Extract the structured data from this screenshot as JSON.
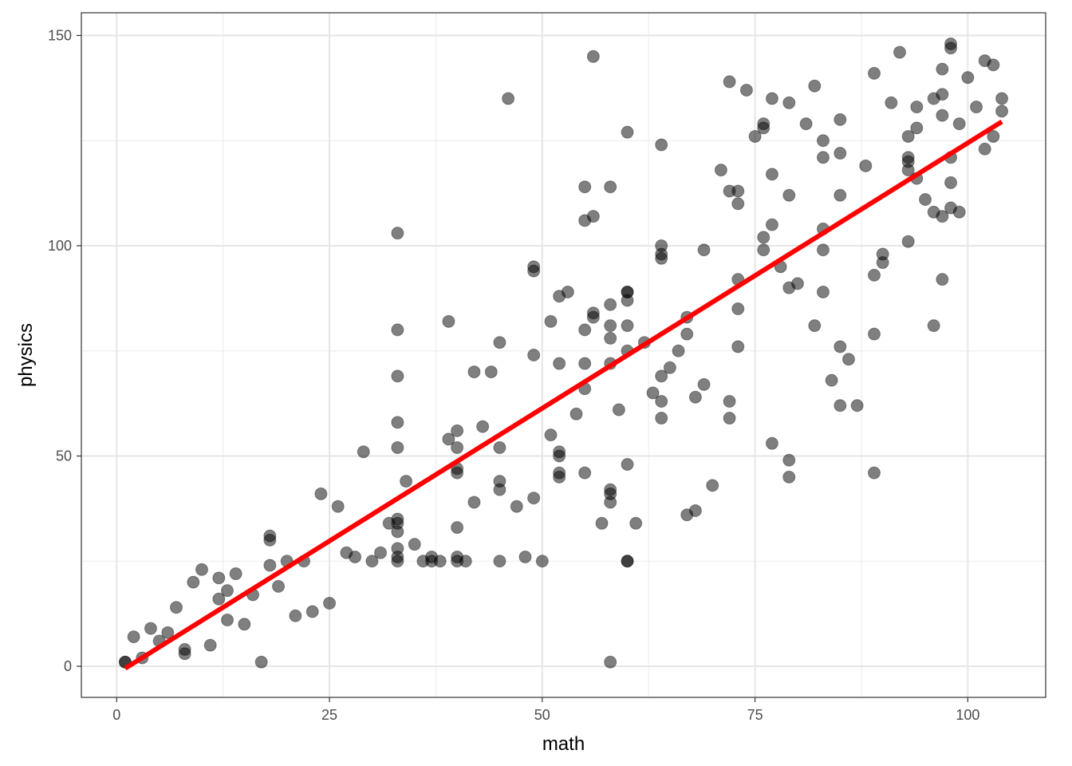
{
  "chart_data": {
    "type": "scatter",
    "title": "",
    "xlabel": "math",
    "ylabel": "physics",
    "xlim": [
      -4.15,
      109.15
    ],
    "ylim": [
      -7.4,
      155.4
    ],
    "x_ticks": [
      0,
      25,
      50,
      75,
      100
    ],
    "x_tick_labels": [
      "0",
      "25",
      "50",
      "75",
      "100"
    ],
    "y_ticks": [
      0,
      50,
      100,
      150
    ],
    "y_tick_labels": [
      "0",
      "50",
      "100",
      "150"
    ],
    "grid": true,
    "legend": "none",
    "point_color": "#000000",
    "point_opacity": 0.5,
    "fit_line": {
      "color": "#ff0000",
      "from": [
        1,
        -0.5
      ],
      "to": [
        104,
        129.5
      ]
    },
    "points": [
      [
        1,
        1
      ],
      [
        1,
        1
      ],
      [
        2,
        7
      ],
      [
        3,
        2
      ],
      [
        4,
        9
      ],
      [
        5,
        6
      ],
      [
        6,
        8
      ],
      [
        7,
        14
      ],
      [
        8,
        4
      ],
      [
        8,
        3
      ],
      [
        9,
        20
      ],
      [
        10,
        23
      ],
      [
        11,
        5
      ],
      [
        12,
        21
      ],
      [
        12,
        16
      ],
      [
        13,
        18
      ],
      [
        13,
        11
      ],
      [
        14,
        22
      ],
      [
        15,
        10
      ],
      [
        16,
        17
      ],
      [
        17,
        1
      ],
      [
        18,
        31
      ],
      [
        18,
        30
      ],
      [
        18,
        24
      ],
      [
        19,
        19
      ],
      [
        20,
        25
      ],
      [
        21,
        12
      ],
      [
        22,
        25
      ],
      [
        23,
        13
      ],
      [
        24,
        41
      ],
      [
        25,
        15
      ],
      [
        26,
        38
      ],
      [
        27,
        27
      ],
      [
        28,
        26
      ],
      [
        29,
        51
      ],
      [
        30,
        25
      ],
      [
        31,
        27
      ],
      [
        32,
        34
      ],
      [
        33,
        103
      ],
      [
        33,
        80
      ],
      [
        33,
        69
      ],
      [
        33,
        58
      ],
      [
        33,
        52
      ],
      [
        33,
        35
      ],
      [
        33,
        34
      ],
      [
        33,
        32
      ],
      [
        33,
        28
      ],
      [
        33,
        26
      ],
      [
        33,
        25
      ],
      [
        34,
        44
      ],
      [
        35,
        29
      ],
      [
        36,
        25
      ],
      [
        37,
        26
      ],
      [
        37,
        25
      ],
      [
        38,
        25
      ],
      [
        39,
        82
      ],
      [
        39,
        54
      ],
      [
        40,
        56
      ],
      [
        40,
        52
      ],
      [
        40,
        47
      ],
      [
        40,
        46
      ],
      [
        40,
        33
      ],
      [
        40,
        26
      ],
      [
        40,
        25
      ],
      [
        41,
        25
      ],
      [
        42,
        70
      ],
      [
        42,
        39
      ],
      [
        43,
        57
      ],
      [
        44,
        70
      ],
      [
        45,
        77
      ],
      [
        45,
        52
      ],
      [
        45,
        44
      ],
      [
        45,
        42
      ],
      [
        45,
        25
      ],
      [
        46,
        135
      ],
      [
        47,
        38
      ],
      [
        48,
        26
      ],
      [
        49,
        95
      ],
      [
        49,
        94
      ],
      [
        49,
        74
      ],
      [
        49,
        40
      ],
      [
        50,
        25
      ],
      [
        51,
        82
      ],
      [
        51,
        55
      ],
      [
        52,
        88
      ],
      [
        52,
        72
      ],
      [
        52,
        51
      ],
      [
        52,
        50
      ],
      [
        52,
        46
      ],
      [
        52,
        45
      ],
      [
        53,
        89
      ],
      [
        54,
        60
      ],
      [
        55,
        114
      ],
      [
        55,
        106
      ],
      [
        55,
        80
      ],
      [
        55,
        72
      ],
      [
        55,
        66
      ],
      [
        55,
        46
      ],
      [
        56,
        145
      ],
      [
        56,
        107
      ],
      [
        56,
        84
      ],
      [
        56,
        83
      ],
      [
        57,
        34
      ],
      [
        58,
        114
      ],
      [
        58,
        86
      ],
      [
        58,
        81
      ],
      [
        58,
        78
      ],
      [
        58,
        72
      ],
      [
        58,
        42
      ],
      [
        58,
        41
      ],
      [
        58,
        39
      ],
      [
        58,
        1
      ],
      [
        59,
        61
      ],
      [
        60,
        127
      ],
      [
        60,
        89
      ],
      [
        60,
        89
      ],
      [
        60,
        87
      ],
      [
        60,
        81
      ],
      [
        60,
        75
      ],
      [
        60,
        48
      ],
      [
        60,
        25
      ],
      [
        60,
        25
      ],
      [
        61,
        34
      ],
      [
        62,
        77
      ],
      [
        63,
        65
      ],
      [
        64,
        124
      ],
      [
        64,
        100
      ],
      [
        64,
        98
      ],
      [
        64,
        97
      ],
      [
        64,
        69
      ],
      [
        64,
        63
      ],
      [
        64,
        59
      ],
      [
        65,
        71
      ],
      [
        66,
        75
      ],
      [
        67,
        83
      ],
      [
        67,
        79
      ],
      [
        67,
        36
      ],
      [
        68,
        64
      ],
      [
        68,
        37
      ],
      [
        69,
        99
      ],
      [
        69,
        67
      ],
      [
        70,
        43
      ],
      [
        71,
        118
      ],
      [
        72,
        139
      ],
      [
        72,
        113
      ],
      [
        72,
        63
      ],
      [
        72,
        59
      ],
      [
        73,
        113
      ],
      [
        73,
        110
      ],
      [
        73,
        92
      ],
      [
        73,
        85
      ],
      [
        73,
        76
      ],
      [
        74,
        137
      ],
      [
        75,
        126
      ],
      [
        76,
        129
      ],
      [
        76,
        128
      ],
      [
        76,
        102
      ],
      [
        76,
        99
      ],
      [
        77,
        135
      ],
      [
        77,
        117
      ],
      [
        77,
        105
      ],
      [
        77,
        53
      ],
      [
        78,
        95
      ],
      [
        79,
        134
      ],
      [
        79,
        112
      ],
      [
        79,
        90
      ],
      [
        79,
        49
      ],
      [
        79,
        45
      ],
      [
        80,
        91
      ],
      [
        81,
        129
      ],
      [
        82,
        138
      ],
      [
        82,
        81
      ],
      [
        83,
        125
      ],
      [
        83,
        121
      ],
      [
        83,
        104
      ],
      [
        83,
        99
      ],
      [
        83,
        89
      ],
      [
        84,
        68
      ],
      [
        85,
        130
      ],
      [
        85,
        122
      ],
      [
        85,
        112
      ],
      [
        85,
        76
      ],
      [
        85,
        62
      ],
      [
        86,
        73
      ],
      [
        87,
        62
      ],
      [
        88,
        119
      ],
      [
        89,
        141
      ],
      [
        89,
        93
      ],
      [
        89,
        79
      ],
      [
        89,
        46
      ],
      [
        90,
        98
      ],
      [
        90,
        96
      ],
      [
        91,
        134
      ],
      [
        92,
        146
      ],
      [
        93,
        126
      ],
      [
        93,
        121
      ],
      [
        93,
        120
      ],
      [
        93,
        118
      ],
      [
        93,
        101
      ],
      [
        94,
        133
      ],
      [
        94,
        128
      ],
      [
        94,
        116
      ],
      [
        95,
        111
      ],
      [
        96,
        135
      ],
      [
        96,
        108
      ],
      [
        96,
        81
      ],
      [
        97,
        142
      ],
      [
        97,
        136
      ],
      [
        97,
        131
      ],
      [
        97,
        107
      ],
      [
        97,
        92
      ],
      [
        98,
        148
      ],
      [
        98,
        147
      ],
      [
        98,
        121
      ],
      [
        98,
        115
      ],
      [
        98,
        109
      ],
      [
        99,
        129
      ],
      [
        99,
        108
      ],
      [
        100,
        140
      ],
      [
        101,
        133
      ],
      [
        102,
        144
      ],
      [
        102,
        123
      ],
      [
        103,
        143
      ],
      [
        103,
        126
      ],
      [
        104,
        135
      ],
      [
        104,
        132
      ]
    ]
  }
}
